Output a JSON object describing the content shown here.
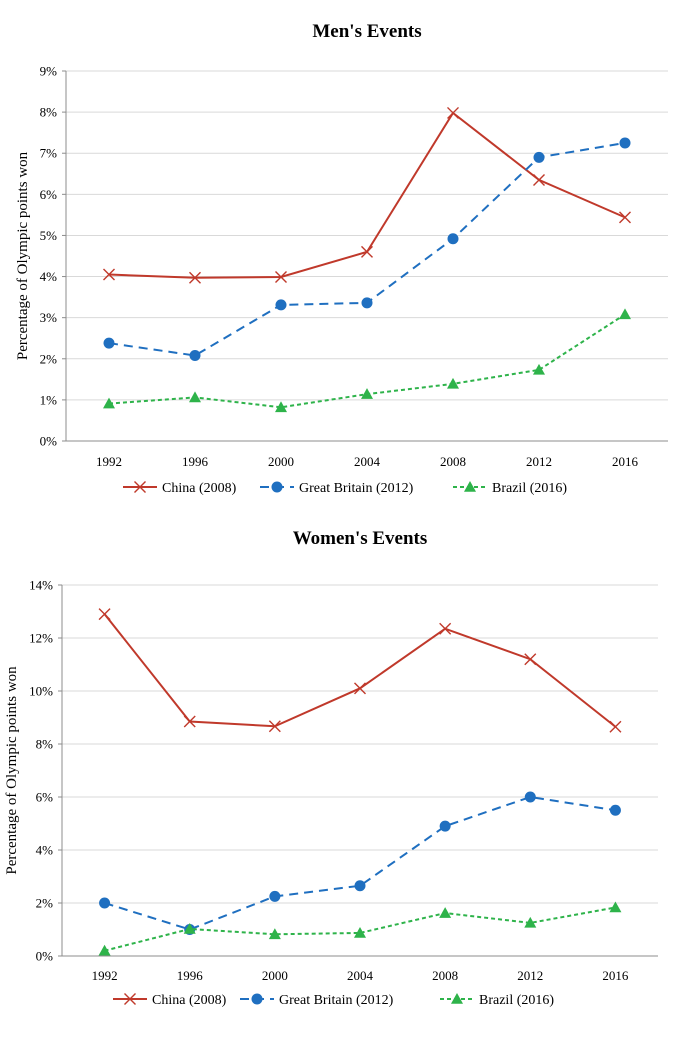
{
  "chart_data": [
    {
      "type": "line",
      "title": "Men's Events",
      "xlabel": "",
      "ylabel": "Percentage of Olympic points won",
      "categories": [
        "1992",
        "1996",
        "2000",
        "2004",
        "2008",
        "2012",
        "2016"
      ],
      "y_ticks": [
        "0%",
        "1%",
        "2%",
        "3%",
        "4%",
        "5%",
        "6%",
        "7%",
        "8%",
        "9%"
      ],
      "ylim": [
        0,
        9
      ],
      "grid": true,
      "legend_position": "bottom",
      "series": [
        {
          "name": "China (2008)",
          "color": "#c0392b",
          "marker": "x",
          "dash": "solid",
          "values": [
            4.05,
            3.97,
            3.99,
            4.6,
            7.98,
            6.35,
            5.44
          ]
        },
        {
          "name": "Great Britain (2012)",
          "color": "#1f6fc0",
          "marker": "circle",
          "dash": "dashed",
          "values": [
            2.38,
            2.08,
            3.31,
            3.36,
            4.92,
            6.9,
            7.25
          ]
        },
        {
          "name": "Brazil (2016)",
          "color": "#2eb34a",
          "marker": "triangle",
          "dash": "dotted",
          "values": [
            0.91,
            1.06,
            0.82,
            1.14,
            1.39,
            1.73,
            3.08
          ]
        }
      ]
    },
    {
      "type": "line",
      "title": "Women's Events",
      "xlabel": "",
      "ylabel": "Percentage of Olympic points won",
      "categories": [
        "1992",
        "1996",
        "2000",
        "2004",
        "2008",
        "2012",
        "2016"
      ],
      "y_ticks": [
        "0%",
        "2%",
        "4%",
        "6%",
        "8%",
        "10%",
        "12%",
        "14%"
      ],
      "ylim": [
        0,
        14
      ],
      "grid": true,
      "legend_position": "bottom",
      "series": [
        {
          "name": "China (2008)",
          "color": "#c0392b",
          "marker": "x",
          "dash": "solid",
          "values": [
            12.9,
            8.85,
            8.67,
            10.1,
            12.35,
            11.2,
            8.65
          ]
        },
        {
          "name": "Great Britain (2012)",
          "color": "#1f6fc0",
          "marker": "circle",
          "dash": "dashed",
          "values": [
            2.0,
            1.0,
            2.25,
            2.65,
            4.9,
            6.0,
            5.5
          ]
        },
        {
          "name": "Brazil (2016)",
          "color": "#2eb34a",
          "marker": "triangle",
          "dash": "dotted",
          "values": [
            0.2,
            1.02,
            0.82,
            0.87,
            1.62,
            1.25,
            1.83
          ]
        }
      ]
    }
  ]
}
